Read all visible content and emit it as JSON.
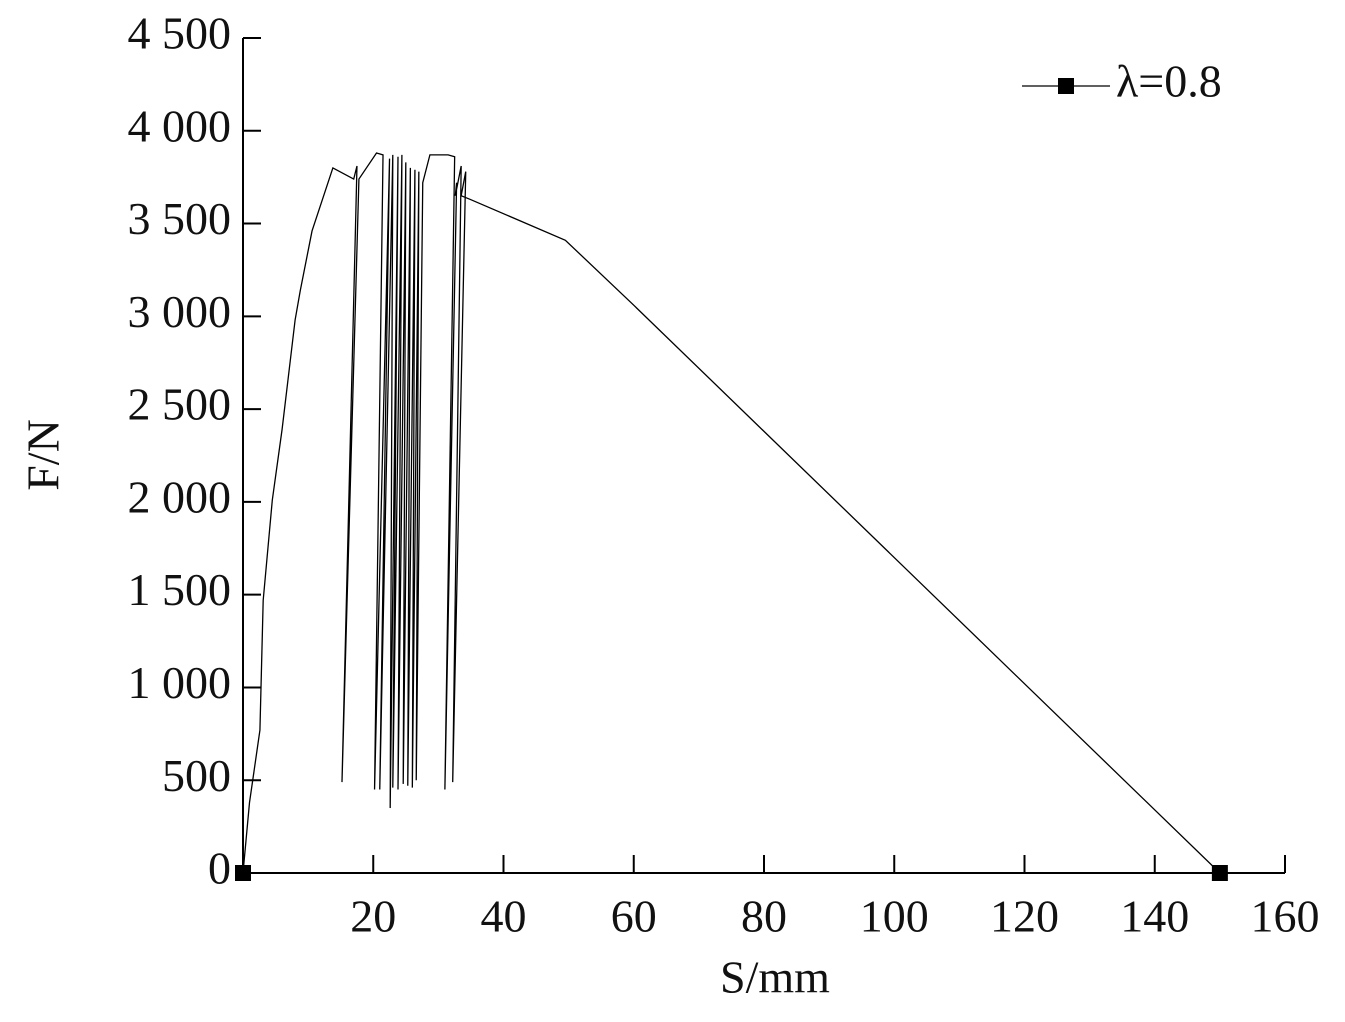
{
  "chart_data": {
    "type": "line",
    "xlabel": "S/mm",
    "ylabel": "F/N",
    "xlim": [
      0,
      160
    ],
    "xticks": [
      20,
      40,
      60,
      80,
      100,
      120,
      140,
      160
    ],
    "ylim": [
      0,
      4500
    ],
    "yticks": [
      0,
      500,
      {
        "value": 1000,
        "label": "1 000"
      },
      {
        "value": 1500,
        "label": "1 500"
      },
      {
        "value": 2000,
        "label": "2 000"
      },
      {
        "value": 2500,
        "label": "2 500"
      },
      {
        "value": 3000,
        "label": "3 000"
      },
      {
        "value": 3500,
        "label": "3 500"
      },
      {
        "value": 4000,
        "label": "4 000"
      },
      {
        "value": 4500,
        "label": "4 500"
      }
    ],
    "legend": "upper right",
    "series": [
      {
        "name": "λ=0.8",
        "color": "#000000",
        "x": [
          0,
          1,
          2.6,
          3.1,
          4.5,
          6,
          8,
          8.8,
          10.6,
          13.8,
          17,
          17.5,
          15.2,
          17.8,
          20.5,
          21.5,
          20.2,
          22.5,
          21.0,
          23.0,
          22.6,
          23.8,
          23.0,
          24.4,
          23.8,
          25.0,
          24.6,
          25.7,
          25.3,
          26.4,
          26.0,
          27.0,
          26.6,
          27.6,
          28.7,
          29.5,
          31.5,
          32.5,
          31.0,
          32.8,
          32.6,
          33.5,
          32.2,
          34.2,
          33.5,
          34.9,
          49.5,
          60,
          150
        ],
        "values": [
          0,
          380,
          770,
          1470,
          2010,
          2390,
          2980,
          3140,
          3460,
          3800,
          3740,
          3810,
          490,
          3740,
          3880,
          3870,
          450,
          3850,
          450,
          3870,
          350,
          3860,
          460,
          3870,
          450,
          3830,
          480,
          3800,
          470,
          3790,
          460,
          3780,
          500,
          3720,
          3870,
          3870,
          3870,
          3860,
          450,
          3720,
          3650,
          3810,
          490,
          3780,
          3650,
          3630,
          3410,
          3060,
          0
        ]
      }
    ]
  }
}
